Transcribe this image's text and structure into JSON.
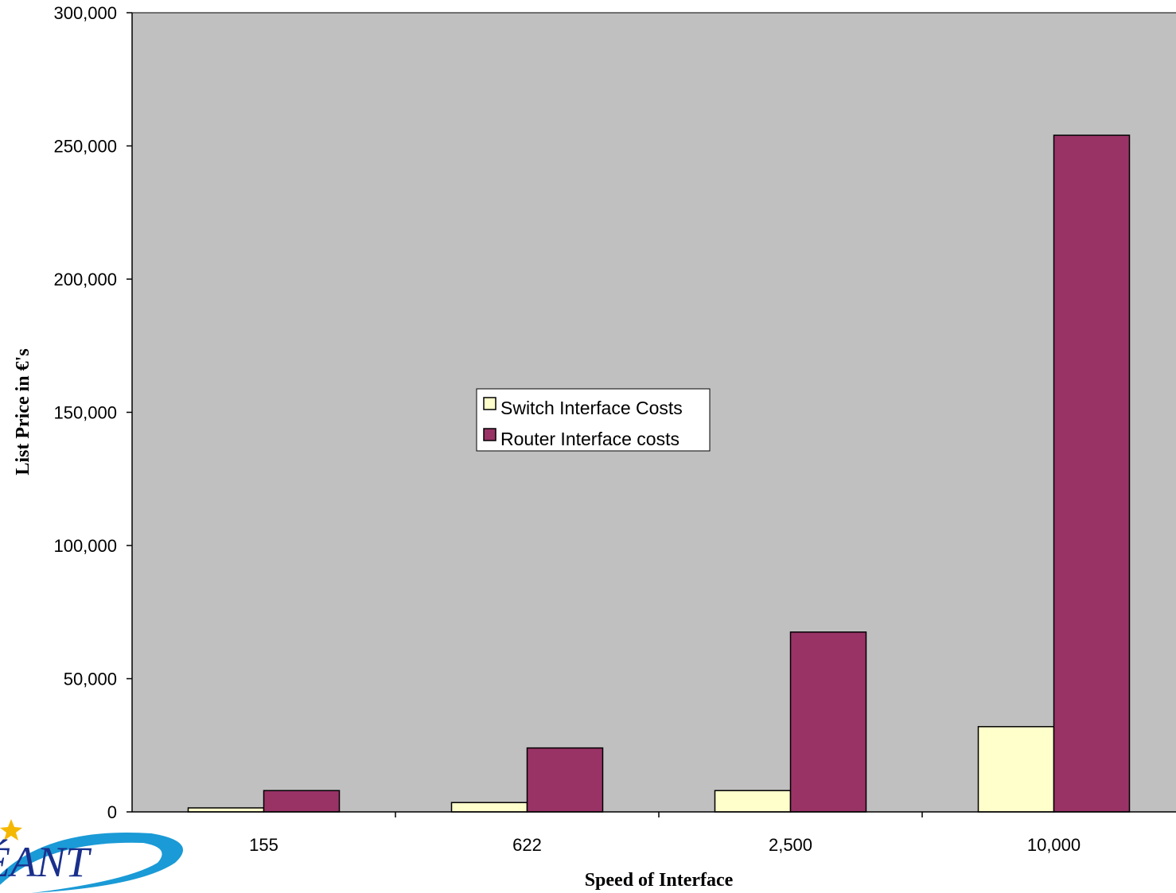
{
  "chart_data": {
    "type": "bar",
    "categories": [
      "155",
      "622",
      "2,500",
      "10,000"
    ],
    "series": [
      {
        "name": "Switch Interface Costs",
        "color": "#ffffcc",
        "values": [
          1500,
          3500,
          8000,
          32000
        ]
      },
      {
        "name": "Router Interface costs",
        "color": "#993366",
        "values": [
          8000,
          24000,
          67500,
          254000
        ]
      }
    ],
    "xlabel": "Speed of Interface",
    "ylabel": "List Price in €'s",
    "ylim": [
      0,
      300000
    ],
    "yticks": [
      0,
      50000,
      100000,
      150000,
      200000,
      250000,
      300000
    ],
    "ytick_labels": [
      "0",
      "50,000",
      "100,000",
      "150,000",
      "200,000",
      "250,000",
      "300,000"
    ],
    "plot_background": "#c0c0c0",
    "grid": false,
    "legend_position": "center"
  },
  "logo": {
    "text": "ÉANT",
    "colors": {
      "swoosh": "#1a9ad6",
      "star": "#f5b800",
      "text": "#1a2f8c"
    }
  }
}
